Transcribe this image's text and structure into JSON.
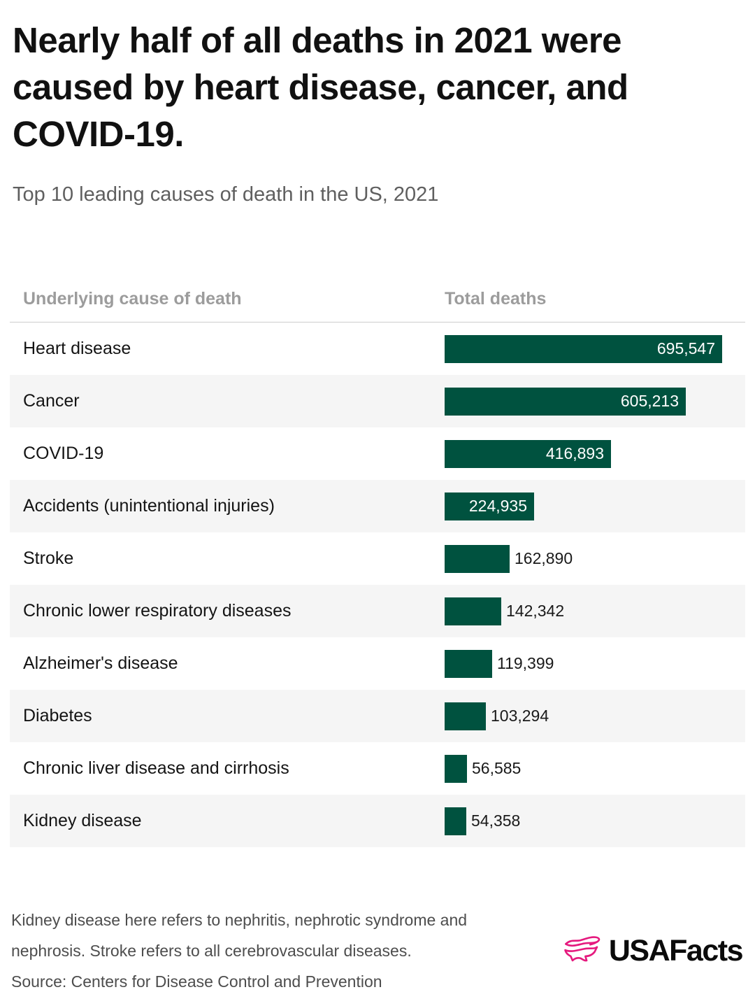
{
  "header": {
    "title": "Nearly half of all deaths in 2021 were caused by heart disease, cancer, and COVID-19.",
    "subtitle": "Top 10 leading causes of death in the US, 2021"
  },
  "table": {
    "columns": [
      "Underlying cause of death",
      "Total deaths"
    ]
  },
  "chart_data": {
    "type": "bar",
    "orientation": "horizontal",
    "title": "Top 10 leading causes of death in the US, 2021",
    "categories": [
      "Heart disease",
      "Cancer",
      "COVID-19",
      "Accidents (unintentional injuries)",
      "Stroke",
      "Chronic lower respiratory diseases",
      "Alzheimer's disease",
      "Diabetes",
      "Chronic liver disease and cirrhosis",
      "Kidney disease"
    ],
    "values": [
      695547,
      605213,
      416893,
      224935,
      162890,
      142342,
      119399,
      103294,
      56585,
      54358
    ],
    "value_labels": [
      "695,547",
      "605,213",
      "416,893",
      "224,935",
      "162,890",
      "142,342",
      "119,399",
      "103,294",
      "56,585",
      "54,358"
    ],
    "xlabel": "Total deaths",
    "ylabel": "Underlying cause of death",
    "xlim": [
      0,
      695547
    ],
    "grid": false,
    "legend": "none",
    "bar_color": "#00523F",
    "alt_row_color": "#F5F5F5"
  },
  "footer": {
    "note": "Kidney disease here refers to nephritis, nephrotic syndrome and nephrosis. Stroke refers to all cerebrovascular diseases.",
    "source": "Source: Centers for Disease Control and Prevention",
    "logo_text": "USAFacts",
    "logo_color": "#E5197E"
  },
  "colors": {
    "title": "#111111",
    "subtitle": "#5F5F5F",
    "column_header": "#9C9C9C",
    "bar": "#00523F",
    "bar_label_inside": "#FFFFFF",
    "bar_label_outside": "#1A1A1A",
    "row_alt_background": "#F5F5F5",
    "divider": "#CCCCCC",
    "footnote": "#4D4D4D",
    "logo_pink": "#E5197E"
  }
}
